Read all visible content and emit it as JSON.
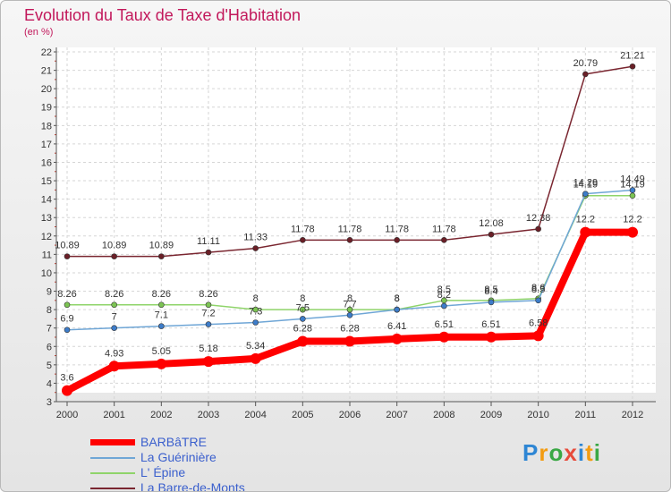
{
  "chart_data": {
    "type": "line",
    "title": "Evolution du Taux de Taxe d'Habitation",
    "subtitle": "(en %)",
    "x": [
      "2000",
      "2001",
      "2002",
      "2003",
      "2004",
      "2005",
      "2006",
      "2007",
      "2008",
      "2009",
      "2010",
      "2011",
      "2012"
    ],
    "ylim": [
      3,
      22
    ],
    "yticks": [
      3,
      4,
      5,
      6,
      7,
      8,
      9,
      10,
      11,
      12,
      13,
      14,
      15,
      16,
      17,
      18,
      19,
      20,
      21,
      22
    ],
    "grid": true,
    "legend_position": "bottom-left",
    "series": [
      {
        "name": "BARBâTRE",
        "color": "#ff0000",
        "width": 8,
        "marker": "#ff0000",
        "values": [
          3.6,
          4.93,
          5.05,
          5.18,
          5.34,
          6.28,
          6.28,
          6.41,
          6.51,
          6.51,
          6.58,
          12.2,
          12.2
        ],
        "labels": [
          "3.6",
          "4.93",
          "5.05",
          "5.18",
          "5.34",
          "6.28",
          "6.28",
          "6.41",
          "6.51",
          "6.51",
          "6.58",
          "12.2",
          "12.2"
        ]
      },
      {
        "name": "La Guérinière",
        "color": "#6fa6d6",
        "width": 1.5,
        "marker": "#3d7cc9",
        "values": [
          6.9,
          7,
          7.1,
          7.2,
          7.3,
          7.5,
          7.7,
          8,
          8.2,
          8.4,
          8.5,
          14.29,
          14.49
        ],
        "labels": [
          "6.9",
          "7",
          "7.1",
          "7.2",
          "7.3",
          "7.5",
          "7.7",
          "8",
          "8.2",
          "8.4",
          "8.5",
          "14.29",
          "14.49"
        ]
      },
      {
        "name": "L' Épine",
        "color": "#8fd46a",
        "width": 1.5,
        "marker": "#7cc453",
        "values": [
          8.26,
          8.26,
          8.26,
          8.26,
          8,
          8,
          8,
          8,
          8.5,
          8.5,
          8.6,
          14.19,
          14.19
        ],
        "labels": [
          "8.26",
          "8.26",
          "8.26",
          "8.26",
          "8",
          "8",
          "8",
          "8",
          "8.5",
          "8.5",
          "8.6",
          "14.19",
          "14.19"
        ]
      },
      {
        "name": "La Barre-de-Monts",
        "color": "#7a2630",
        "width": 1.5,
        "marker": "#6a1f27",
        "values": [
          10.89,
          10.89,
          10.89,
          11.11,
          11.33,
          11.78,
          11.78,
          11.78,
          11.78,
          12.08,
          12.38,
          20.79,
          21.21
        ],
        "labels": [
          "10.89",
          "10.89",
          "10.89",
          "11.11",
          "11.33",
          "11.78",
          "11.78",
          "11.78",
          "11.78",
          "12.08",
          "12.38",
          "20.79",
          "21.21"
        ]
      }
    ]
  },
  "logo": {
    "letters": [
      "P",
      "r",
      "o",
      "x",
      "i",
      "t",
      "i"
    ],
    "colors": [
      "#2e86d4",
      "#f39c12",
      "#3aa845",
      "#e74c3c",
      "#2e86d4",
      "#f39c12",
      "#3aa845"
    ]
  }
}
